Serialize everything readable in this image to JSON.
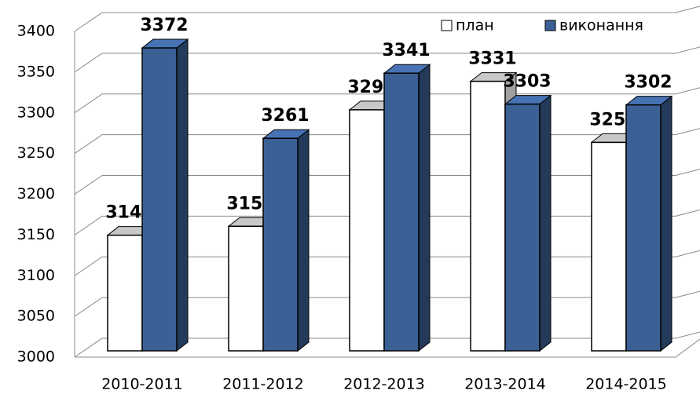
{
  "chart_data": {
    "type": "bar",
    "categories": [
      "2010-2011",
      "2011-2012",
      "2012-2013",
      "2013-2014",
      "2014-2015"
    ],
    "series": [
      {
        "name": "план",
        "color": "#ffffff",
        "values": [
          3142,
          3153,
          3296,
          3331,
          3256
        ]
      },
      {
        "name": "виконання",
        "color": "#3b6096",
        "values": [
          3372,
          3261,
          3341,
          3303,
          3302
        ]
      }
    ],
    "ylim": [
      3000,
      3400
    ],
    "yticks": [
      3000,
      3050,
      3100,
      3150,
      3200,
      3250,
      3300,
      3350,
      3400
    ],
    "grid": true,
    "legend": "top-right"
  }
}
